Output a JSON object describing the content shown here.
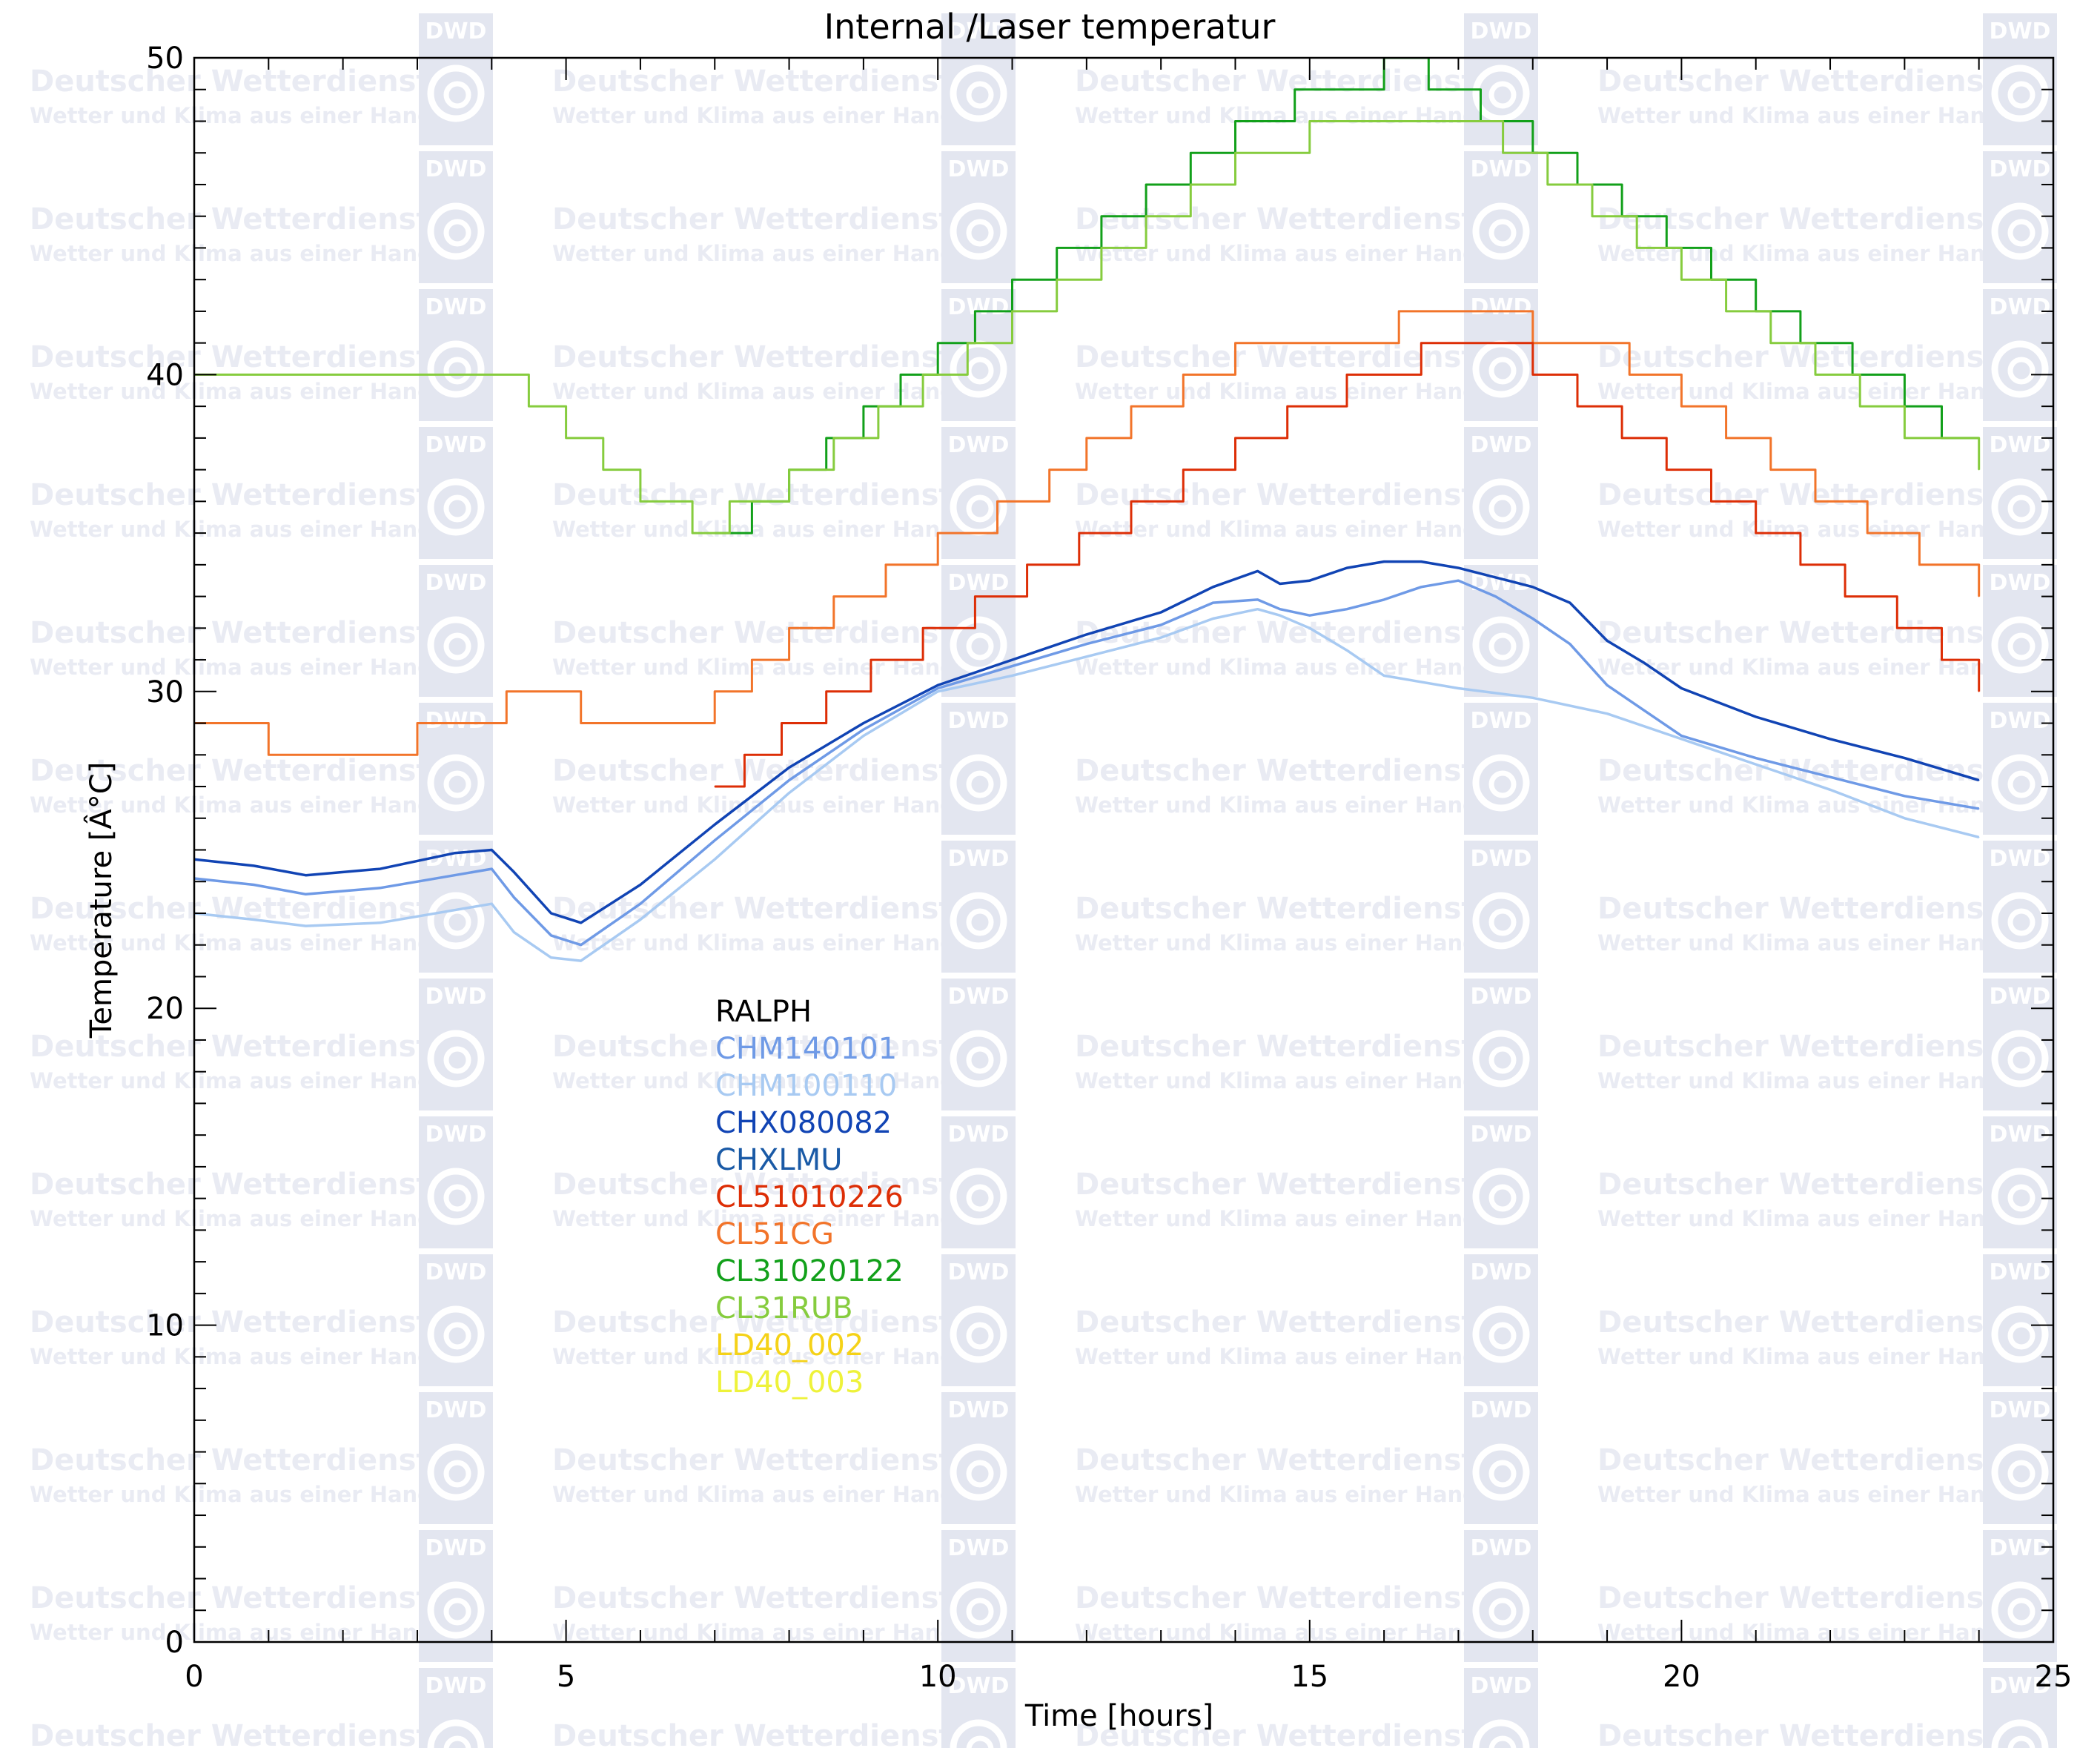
{
  "watermark": {
    "logo_text": "DWD",
    "line1": "Deutscher Wetterdienst",
    "line2": "Wetter und Klima aus einer Hand",
    "color": "#e9ebf3",
    "logo_color": "#e3e6f0"
  },
  "chart_data": {
    "type": "line",
    "title": "Internal /Laser temperatur",
    "xlabel": "Time [hours]",
    "ylabel": "Temperature [Â°C]",
    "xlim": [
      0,
      25
    ],
    "ylim": [
      0,
      50
    ],
    "x_ticks": [
      0,
      5,
      10,
      15,
      20,
      25
    ],
    "y_ticks": [
      0,
      10,
      20,
      30,
      40,
      50
    ],
    "x_minor_step": 1,
    "y_minor_step": 1,
    "legend_placement": "center-left",
    "legend": [
      {
        "name": "RALPH",
        "color": "#000000"
      },
      {
        "name": "CHM140101",
        "color": "#6f9ae6"
      },
      {
        "name": "CHM100110",
        "color": "#a8caf2"
      },
      {
        "name": "CHX080082",
        "color": "#1144b4"
      },
      {
        "name": "CHXLMU",
        "color": "#1a5aa6"
      },
      {
        "name": "CL51010226",
        "color": "#dd2e06"
      },
      {
        "name": "CL51CG",
        "color": "#f2742a"
      },
      {
        "name": "CL31020122",
        "color": "#12a01a"
      },
      {
        "name": "CL31RUB",
        "color": "#86cc3e"
      },
      {
        "name": "LD40_002",
        "color": "#f5d218"
      },
      {
        "name": "LD40_003",
        "color": "#eef23a"
      }
    ],
    "series": [
      {
        "name": "CHX080082",
        "color": "#1144b4",
        "x": [
          0,
          0.8,
          1.5,
          2.5,
          3.5,
          4.0,
          4.3,
          4.8,
          5.2,
          6.0,
          7.0,
          8.0,
          9.0,
          10.0,
          11.0,
          12.0,
          13.0,
          13.7,
          14.3,
          14.6,
          15.0,
          15.5,
          16.0,
          16.5,
          17.0,
          17.5,
          18.0,
          18.5,
          19.0,
          19.5,
          20.0,
          21.0,
          22.0,
          23.0,
          24.0
        ],
        "y": [
          24.7,
          24.5,
          24.2,
          24.4,
          24.9,
          25.0,
          24.3,
          23.0,
          22.7,
          23.9,
          25.8,
          27.6,
          29.0,
          30.2,
          31.0,
          31.8,
          32.5,
          33.3,
          33.8,
          33.4,
          33.5,
          33.9,
          34.1,
          34.1,
          33.9,
          33.6,
          33.3,
          32.8,
          31.6,
          30.9,
          30.1,
          29.2,
          28.5,
          27.9,
          27.2
        ]
      },
      {
        "name": "CHM140101",
        "color": "#6f9ae6",
        "x": [
          0,
          0.8,
          1.5,
          2.5,
          3.5,
          4.0,
          4.3,
          4.8,
          5.2,
          6.0,
          7.0,
          8.0,
          9.0,
          10.0,
          11.0,
          12.0,
          13.0,
          13.7,
          14.3,
          14.6,
          15.0,
          15.5,
          16.0,
          16.5,
          17.0,
          17.5,
          18.0,
          18.5,
          19.0,
          19.5,
          20.0,
          21.0,
          22.0,
          23.0,
          24.0
        ],
        "y": [
          24.1,
          23.9,
          23.6,
          23.8,
          24.2,
          24.4,
          23.5,
          22.3,
          22.0,
          23.3,
          25.3,
          27.2,
          28.8,
          30.1,
          30.8,
          31.5,
          32.1,
          32.8,
          32.9,
          32.6,
          32.4,
          32.6,
          32.9,
          33.3,
          33.5,
          33.0,
          32.3,
          31.5,
          30.2,
          29.4,
          28.6,
          27.9,
          27.3,
          26.7,
          26.3
        ]
      },
      {
        "name": "CHM100110",
        "color": "#a8caf2",
        "x": [
          0,
          0.8,
          1.5,
          2.5,
          3.5,
          4.0,
          4.3,
          4.8,
          5.2,
          6.0,
          7.0,
          8.0,
          9.0,
          10.0,
          11.0,
          12.0,
          13.0,
          13.7,
          14.3,
          14.6,
          15.0,
          15.5,
          16.0,
          17.0,
          18.0,
          19.0,
          20.0,
          21.0,
          22.0,
          23.0,
          24.0
        ],
        "y": [
          23.0,
          22.8,
          22.6,
          22.7,
          23.1,
          23.3,
          22.4,
          21.6,
          21.5,
          22.8,
          24.7,
          26.8,
          28.6,
          30.0,
          30.5,
          31.1,
          31.7,
          32.3,
          32.6,
          32.4,
          32.0,
          31.3,
          30.5,
          30.1,
          29.8,
          29.3,
          28.5,
          27.7,
          26.9,
          26.0,
          25.4
        ]
      },
      {
        "name": "CL51CG",
        "color": "#f2742a",
        "step": true,
        "x": [
          0,
          1.0,
          3.0,
          4.2,
          5.2,
          6.5,
          7.0,
          7.5,
          8.0,
          8.6,
          9.3,
          10.0,
          10.8,
          11.5,
          12.0,
          12.6,
          13.3,
          14.0,
          14.8,
          15.5,
          16.2,
          16.8,
          17.5,
          18.0,
          18.6,
          19.3,
          20.0,
          20.6,
          21.2,
          21.8,
          22.5,
          23.2,
          24.0
        ],
        "y": [
          29.0,
          28.0,
          29.0,
          30.0,
          29.0,
          29.0,
          30.0,
          31.0,
          32.0,
          33.0,
          34.0,
          35.0,
          36.0,
          37.0,
          38.0,
          39.0,
          40.0,
          41.0,
          41.0,
          41.0,
          42.0,
          42.0,
          42.0,
          41.0,
          41.0,
          40.0,
          39.0,
          38.0,
          37.0,
          36.0,
          35.0,
          34.0,
          33.0
        ]
      },
      {
        "name": "CL51010226",
        "color": "#dd2e06",
        "step": true,
        "x": [
          7.0,
          7.4,
          7.9,
          8.5,
          9.1,
          9.8,
          10.5,
          11.2,
          11.9,
          12.6,
          13.3,
          14.0,
          14.7,
          15.5,
          16.5,
          17.3,
          18.0,
          18.6,
          19.2,
          19.8,
          20.4,
          21.0,
          21.6,
          22.2,
          22.9,
          23.5,
          24.0
        ],
        "y": [
          27.0,
          28.0,
          29.0,
          30.0,
          31.0,
          32.0,
          33.0,
          34.0,
          35.0,
          36.0,
          37.0,
          38.0,
          39.0,
          40.0,
          41.0,
          41.0,
          40.0,
          39.0,
          38.0,
          37.0,
          36.0,
          35.0,
          34.0,
          33.0,
          32.0,
          31.0,
          30.0
        ]
      },
      {
        "name": "CL31020122",
        "color": "#12a01a",
        "step": true,
        "x": [
          7.0,
          7.5,
          8.0,
          8.5,
          9.0,
          9.5,
          10.0,
          10.5,
          11.0,
          11.6,
          12.2,
          12.8,
          13.4,
          14.0,
          14.8,
          16.0,
          16.6,
          17.3,
          18.0,
          18.6,
          19.2,
          19.8,
          20.4,
          21.0,
          21.6,
          22.3,
          23.0,
          23.5,
          24.0
        ],
        "y": [
          35.0,
          36.0,
          37.0,
          38.0,
          39.0,
          40.0,
          41.0,
          42.0,
          43.0,
          44.0,
          45.0,
          46.0,
          47.0,
          48.0,
          49.0,
          50.0,
          49.0,
          48.0,
          47.0,
          46.0,
          45.0,
          44.0,
          43.0,
          42.0,
          41.0,
          40.0,
          39.0,
          38.0,
          38.0
        ]
      },
      {
        "name": "CL31RUB",
        "color": "#86cc3e",
        "step": true,
        "x": [
          0,
          3.0,
          4.0,
          4.5,
          5.0,
          5.5,
          6.0,
          6.7,
          7.2,
          8.0,
          8.6,
          9.2,
          9.8,
          10.4,
          11.0,
          11.6,
          12.2,
          12.8,
          13.4,
          14.0,
          15.0,
          16.0,
          17.0,
          17.6,
          18.2,
          18.8,
          19.4,
          20.0,
          20.6,
          21.2,
          21.8,
          22.4,
          23.0,
          24.0
        ],
        "y": [
          40.0,
          40.0,
          40.0,
          39.0,
          38.0,
          37.0,
          36.0,
          35.0,
          36.0,
          37.0,
          38.0,
          39.0,
          40.0,
          41.0,
          42.0,
          43.0,
          44.0,
          45.0,
          46.0,
          47.0,
          48.0,
          48.0,
          48.0,
          47.0,
          46.0,
          45.0,
          44.0,
          43.0,
          42.0,
          41.0,
          40.0,
          39.0,
          38.0,
          37.0
        ]
      }
    ]
  }
}
